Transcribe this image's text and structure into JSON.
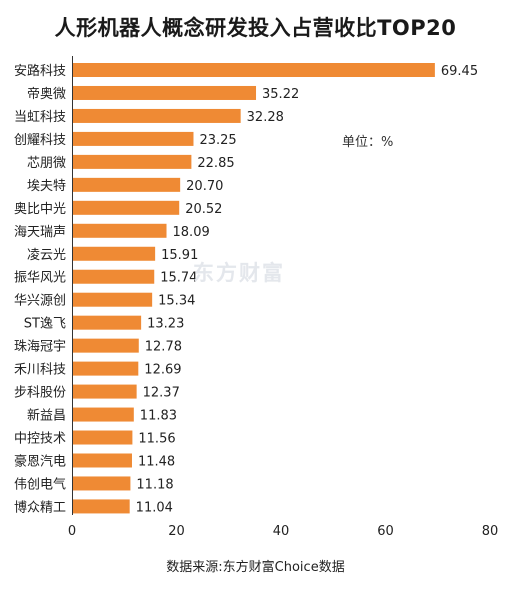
{
  "chart_data": {
    "type": "bar",
    "orientation": "horizontal",
    "title": "人形机器人概念研发投入占营收比TOP20",
    "unit_note": "单位：%",
    "watermark": "东方财富",
    "source": "数据来源:东方财富Choice数据",
    "categories": [
      "安路科技",
      "帝奥微",
      "当虹科技",
      "创耀科技",
      "芯朋微",
      "埃夫特",
      "奥比中光",
      "海天瑞声",
      "凌云光",
      "振华风光",
      "华兴源创",
      "ST逸飞",
      "珠海冠宇",
      "禾川科技",
      "步科股份",
      "新益昌",
      "中控技术",
      "豪恩汽电",
      "伟创电气",
      "博众精工"
    ],
    "values": [
      69.45,
      35.22,
      32.28,
      23.25,
      22.85,
      20.7,
      20.52,
      18.09,
      15.91,
      15.74,
      15.34,
      13.23,
      12.78,
      12.69,
      12.37,
      11.83,
      11.56,
      11.48,
      11.18,
      11.04
    ],
    "value_labels": [
      "69.45",
      "35.22",
      "32.28",
      "23.25",
      "22.85",
      "20.70",
      "20.52",
      "18.09",
      "15.91",
      "15.74",
      "15.34",
      "13.23",
      "12.78",
      "12.69",
      "12.37",
      "11.83",
      "11.56",
      "11.48",
      "11.18",
      "11.04"
    ],
    "xlim": [
      0,
      80
    ],
    "xticks": [
      "0",
      "20",
      "40",
      "60",
      "80"
    ],
    "bar_color": "#ef8a34",
    "grid": false
  }
}
